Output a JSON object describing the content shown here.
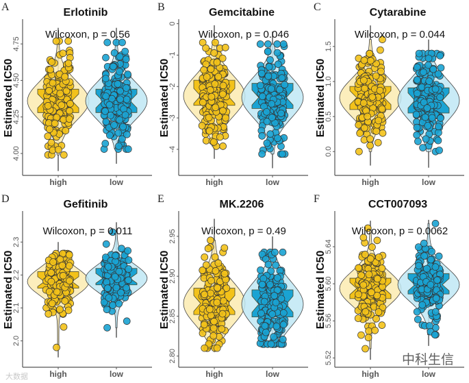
{
  "colors": {
    "high_fill": "#F3C21A",
    "high_violin": "#FCEBB0",
    "low_fill": "#1AA3D3",
    "low_violin": "#BFE7F4",
    "outline": "#3a3a1a",
    "axis": "#555555"
  },
  "watermarks": {
    "bottom_right": "中科生信",
    "bottom_left": "大数据"
  },
  "chart_data": [
    {
      "type": "violin-box",
      "label": "A",
      "title": "Erlotinib",
      "ylabel": "Estimated IC50",
      "annotation": "Wilcoxon, p = 0.56",
      "ylim": [
        3.85,
        4.91
      ],
      "yticks": [
        "4.00",
        "4.25",
        "4.50",
        "4.75"
      ],
      "categories": [
        "high",
        "low"
      ],
      "groups": [
        {
          "name": "high",
          "min": 3.88,
          "q1": 4.28,
          "median": 4.36,
          "q3": 4.44,
          "max": 4.86,
          "pmin": 3.99,
          "pmax": 4.77
        },
        {
          "name": "low",
          "min": 3.93,
          "q1": 4.28,
          "median": 4.36,
          "q3": 4.44,
          "max": 4.86,
          "pmin": 4.03,
          "pmax": 4.76
        }
      ]
    },
    {
      "type": "violin-box",
      "label": "B",
      "title": "Gemcitabine",
      "ylabel": "Estimated IC50",
      "annotation": "Wilcoxon, p = 0.046",
      "ylim": [
        -4.83,
        0.1
      ],
      "yticks": [
        "0",
        "-1",
        "-2",
        "-3",
        "-4"
      ],
      "categories": [
        "high",
        "low"
      ],
      "groups": [
        {
          "name": "high",
          "min": -4.3,
          "q1": -2.6,
          "median": -2.3,
          "q3": -1.8,
          "max": -0.05,
          "pmin": -3.9,
          "pmax": -0.6
        },
        {
          "name": "low",
          "min": -4.6,
          "q1": -2.7,
          "median": -2.35,
          "q3": -1.9,
          "max": -0.25,
          "pmin": -4.15,
          "pmax": -0.65
        }
      ]
    },
    {
      "type": "violin-box",
      "label": "C",
      "title": "Cytarabine",
      "ylabel": "Estimated IC50",
      "annotation": "Wilcoxon, p = 0.044",
      "ylim": [
        -0.34,
        1.87
      ],
      "yticks": [
        "0.0",
        "0.5",
        "1.0",
        "1.5"
      ],
      "categories": [
        "high",
        "low"
      ],
      "groups": [
        {
          "name": "high",
          "min": -0.2,
          "q1": 0.6,
          "median": 0.77,
          "q3": 0.93,
          "max": 1.8,
          "pmin": 0.0,
          "pmax": 1.6
        },
        {
          "name": "low",
          "min": -0.23,
          "q1": 0.55,
          "median": 0.73,
          "q3": 0.91,
          "max": 1.6,
          "pmin": 0.0,
          "pmax": 1.4
        }
      ]
    },
    {
      "type": "violin-box",
      "label": "D",
      "title": "Gefitinib",
      "ylabel": "Estimated IC50",
      "annotation": "Wilcoxon, p = 0.011",
      "ylim": [
        1.92,
        2.39
      ],
      "yticks": [
        "2.0",
        "2.1",
        "2.2",
        "2.3"
      ],
      "categories": [
        "high",
        "low"
      ],
      "groups": [
        {
          "name": "high",
          "min": 1.95,
          "q1": 2.16,
          "median": 2.18,
          "q3": 2.21,
          "max": 2.3,
          "pmin": 1.98,
          "pmax": 2.265
        },
        {
          "name": "low",
          "min": 2.01,
          "q1": 2.17,
          "median": 2.19,
          "q3": 2.22,
          "max": 2.36,
          "pmin": 2.04,
          "pmax": 2.33
        }
      ]
    },
    {
      "type": "violin-box",
      "label": "E",
      "title": "MK.2206",
      "ylabel": "Estimated IC50",
      "annotation": "Wilcoxon, p = 0.49",
      "ylim": [
        2.786,
        2.98
      ],
      "yticks": [
        "2.80",
        "2.85",
        "2.90",
        "2.95"
      ],
      "categories": [
        "high",
        "low"
      ],
      "groups": [
        {
          "name": "high",
          "min": 2.805,
          "q1": 2.852,
          "median": 2.866,
          "q3": 2.885,
          "max": 2.972,
          "pmin": 2.81,
          "pmax": 2.945
        },
        {
          "name": "low",
          "min": 2.81,
          "q1": 2.849,
          "median": 2.865,
          "q3": 2.883,
          "max": 2.95,
          "pmin": 2.815,
          "pmax": 2.93
        }
      ]
    },
    {
      "type": "violin-box",
      "label": "F",
      "title": "CCT007093",
      "ylabel": "Estimated IC50",
      "annotation": "Wilcoxon, p = 0.0062",
      "ylim": [
        5.51,
        5.677
      ],
      "yticks": [
        "5.52",
        "5.56",
        "5.60",
        "5.64"
      ],
      "categories": [
        "high",
        "low"
      ],
      "groups": [
        {
          "name": "high",
          "min": 5.518,
          "q1": 5.584,
          "median": 5.595,
          "q3": 5.606,
          "max": 5.668,
          "pmin": 5.53,
          "pmax": 5.66
        },
        {
          "name": "low",
          "min": 5.533,
          "q1": 5.589,
          "median": 5.599,
          "q3": 5.611,
          "max": 5.669,
          "pmin": 5.545,
          "pmax": 5.665
        }
      ]
    }
  ]
}
